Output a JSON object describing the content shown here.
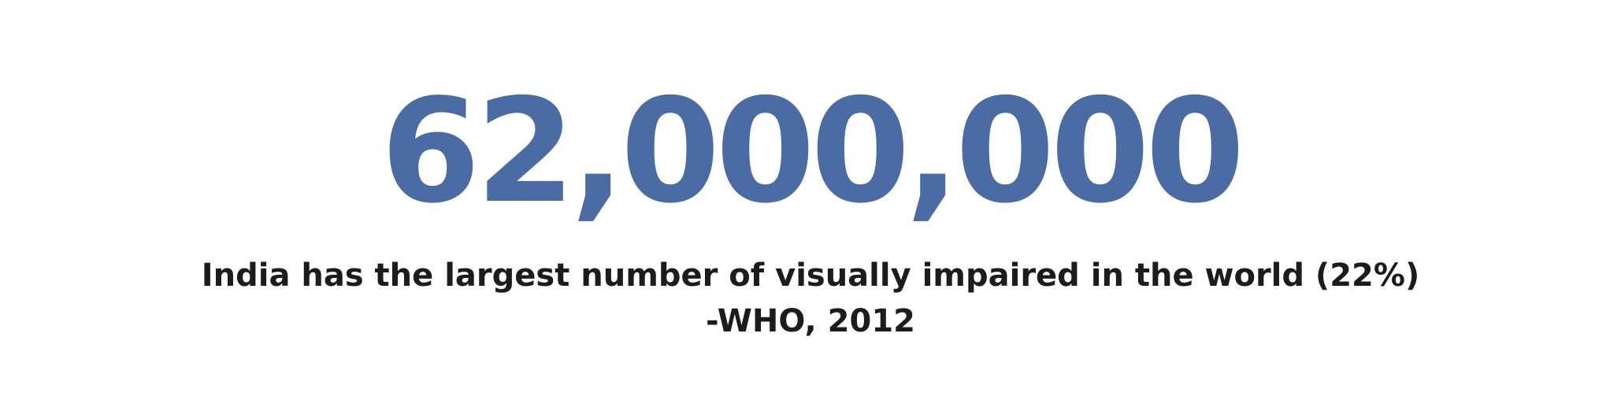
{
  "headline": {
    "number": "62,000,000",
    "color": "#4a6ba3"
  },
  "caption": {
    "text": "India has the largest number of visually impaired in the world (22%)"
  },
  "source": {
    "text": "-WHO, 2012"
  }
}
